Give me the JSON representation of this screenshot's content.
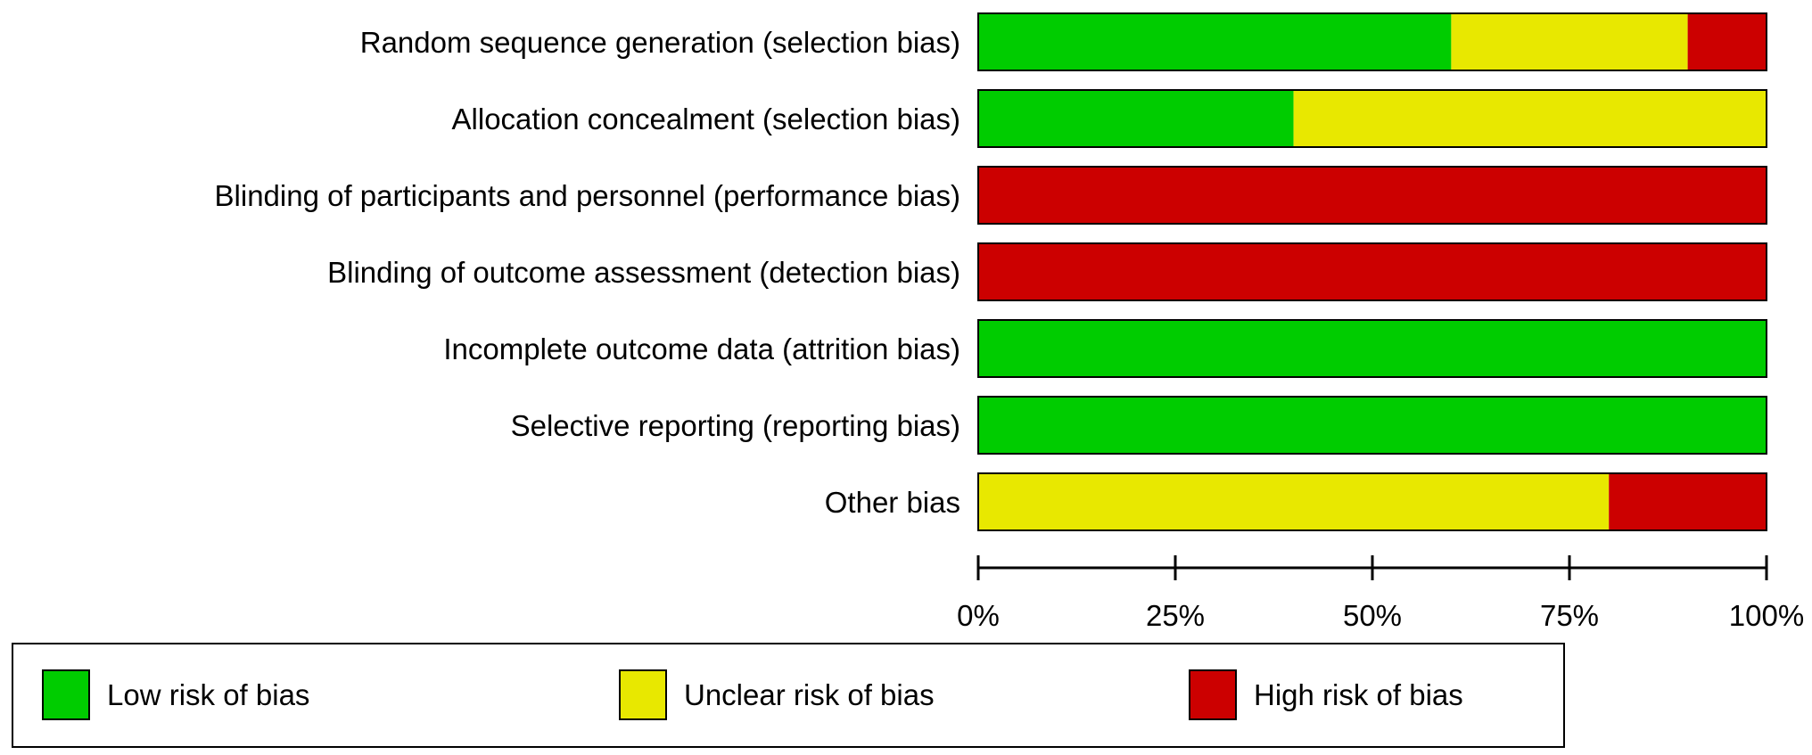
{
  "chart_data": {
    "type": "bar",
    "stacked": true,
    "orientation": "horizontal",
    "title": "",
    "xlabel": "",
    "ylabel": "",
    "xlim": [
      0,
      100
    ],
    "grid": false,
    "categories": [
      "Random sequence generation (selection bias)",
      "Allocation concealment (selection bias)",
      "Blinding of participants and personnel (performance bias)",
      "Blinding of outcome assessment (detection bias)",
      "Incomplete outcome data (attrition bias)",
      "Selective reporting (reporting bias)",
      "Other bias"
    ],
    "series": [
      {
        "name": "Low risk of bias",
        "color": "#00cc00",
        "values": [
          60,
          40,
          0,
          0,
          100,
          100,
          0
        ]
      },
      {
        "name": "Unclear risk of bias",
        "color": "#e8e800",
        "values": [
          30,
          60,
          0,
          0,
          0,
          0,
          80
        ]
      },
      {
        "name": "High risk of bias",
        "color": "#cc0000",
        "values": [
          10,
          0,
          100,
          100,
          0,
          0,
          20
        ]
      }
    ],
    "ticks": [
      "0%",
      "25%",
      "50%",
      "75%",
      "100%"
    ],
    "tick_values": [
      0,
      25,
      50,
      75,
      100
    ],
    "legend_position": "bottom"
  }
}
